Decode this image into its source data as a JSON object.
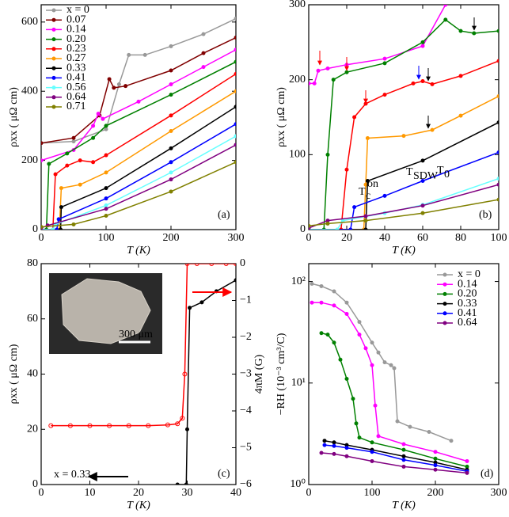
{
  "chart_data": [
    {
      "type": "line",
      "x_label": "T (K)",
      "y_label": "ρxx ( μΩ cm)",
      "xlim": [
        0,
        300
      ],
      "xticks": [
        0,
        100,
        200,
        300
      ],
      "ylim": [
        0,
        650
      ],
      "yticks": [
        0,
        200,
        400,
        600
      ],
      "legend": "upper left",
      "annotations": [
        "(a)"
      ],
      "series": [
        {
          "name": "x = 0",
          "color": "#999999",
          "x": [
            0,
            50,
            100,
            120,
            135,
            160,
            200,
            250,
            300
          ],
          "values": [
            250,
            255,
            290,
            420,
            505,
            505,
            530,
            565,
            610
          ]
        },
        {
          "name": "0.07",
          "color": "#800000",
          "x": [
            0,
            50,
            90,
            105,
            112,
            130,
            200,
            250,
            300
          ],
          "values": [
            250,
            265,
            330,
            435,
            410,
            415,
            460,
            510,
            555
          ]
        },
        {
          "name": "0.14",
          "color": "#ff00ff",
          "x": [
            0,
            50,
            80,
            88,
            95,
            150,
            200,
            250,
            300
          ],
          "values": [
            200,
            230,
            300,
            335,
            320,
            370,
            420,
            470,
            520
          ]
        },
        {
          "name": "0.20",
          "color": "#008000",
          "x": [
            0,
            8,
            12,
            40,
            80,
            100,
            200,
            300
          ],
          "values": [
            0,
            0,
            190,
            220,
            265,
            300,
            390,
            485
          ]
        },
        {
          "name": "0.23",
          "color": "#ff0000",
          "x": [
            0,
            18,
            22,
            40,
            60,
            80,
            100,
            200,
            300
          ],
          "values": [
            0,
            0,
            160,
            185,
            200,
            195,
            215,
            330,
            450
          ]
        },
        {
          "name": "0.27",
          "color": "#ff9900",
          "x": [
            0,
            28,
            31,
            60,
            100,
            200,
            300
          ],
          "values": [
            0,
            0,
            120,
            130,
            165,
            285,
            400
          ]
        },
        {
          "name": "0.33",
          "color": "#000000",
          "x": [
            0,
            30,
            31,
            100,
            200,
            300
          ],
          "values": [
            0,
            0,
            65,
            120,
            235,
            355
          ]
        },
        {
          "name": "0.41",
          "color": "#0000ff",
          "x": [
            0,
            24,
            27,
            100,
            200,
            300
          ],
          "values": [
            0,
            0,
            30,
            90,
            195,
            305
          ]
        },
        {
          "name": "0.56",
          "color": "#66ffff",
          "x": [
            0,
            18,
            22,
            100,
            200,
            300
          ],
          "values": [
            0,
            0,
            15,
            70,
            165,
            270
          ]
        },
        {
          "name": "0.64",
          "color": "#800080",
          "x": [
            0,
            10,
            100,
            200,
            300
          ],
          "values": [
            5,
            12,
            60,
            145,
            245
          ]
        },
        {
          "name": "0.71",
          "color": "#808000",
          "x": [
            0,
            50,
            100,
            200,
            300
          ],
          "values": [
            8,
            15,
            40,
            110,
            195
          ]
        }
      ]
    },
    {
      "type": "line",
      "x_label": "T (K)",
      "y_label": "ρxx ( μΩ cm)",
      "xlim": [
        0,
        100
      ],
      "xticks": [
        0,
        20,
        40,
        60,
        80,
        100
      ],
      "ylim": [
        0,
        300
      ],
      "yticks": [
        0,
        100,
        200,
        300
      ],
      "annotations": [
        "T",
        "c",
        "on",
        "T",
        "SDW",
        "T",
        "0",
        "(b)"
      ],
      "series": [
        {
          "color": "#ff00ff",
          "x": [
            0,
            3,
            5,
            10,
            20,
            40,
            60,
            72
          ],
          "values": [
            195,
            195,
            212,
            215,
            220,
            228,
            245,
            300
          ]
        },
        {
          "color": "#008000",
          "x": [
            0,
            8,
            10,
            13,
            20,
            40,
            60,
            72,
            80,
            87,
            100
          ],
          "values": [
            0,
            0,
            100,
            200,
            210,
            222,
            250,
            280,
            265,
            262,
            265
          ]
        },
        {
          "color": "#ff0000",
          "x": [
            0,
            17,
            20,
            24,
            30,
            40,
            55,
            60,
            65,
            80,
            100
          ],
          "values": [
            0,
            0,
            80,
            150,
            168,
            180,
            195,
            198,
            194,
            205,
            225
          ]
        },
        {
          "color": "#ff9900",
          "x": [
            0,
            29,
            30,
            31,
            50,
            65,
            80,
            100
          ],
          "values": [
            0,
            0,
            60,
            122,
            125,
            133,
            152,
            178
          ]
        },
        {
          "color": "#000000",
          "x": [
            0,
            30,
            31,
            60,
            100
          ],
          "values": [
            0,
            0,
            65,
            92,
            143
          ]
        },
        {
          "color": "#0000ff",
          "x": [
            0,
            22,
            24,
            40,
            60,
            100
          ],
          "values": [
            0,
            0,
            30,
            45,
            65,
            103
          ]
        },
        {
          "color": "#66ffff",
          "x": [
            0,
            15,
            18,
            40,
            60,
            100
          ],
          "values": [
            0,
            0,
            12,
            22,
            33,
            68
          ]
        },
        {
          "color": "#800080",
          "x": [
            0,
            10,
            30,
            60,
            100
          ],
          "values": [
            2,
            12,
            18,
            32,
            60
          ]
        },
        {
          "color": "#808000",
          "x": [
            0,
            10,
            30,
            60,
            100
          ],
          "values": [
            5,
            8,
            12,
            22,
            40
          ]
        }
      ]
    },
    {
      "type": "line",
      "x_label": "T (K)",
      "y_label": "ρxx ( μΩ cm)",
      "y2_label": "4πM (G)",
      "xlim": [
        0,
        40
      ],
      "xticks": [
        0,
        10,
        20,
        30,
        40
      ],
      "ylim": [
        0,
        80
      ],
      "yticks": [
        0,
        20,
        40,
        60,
        80
      ],
      "y2lim": [
        -6,
        0
      ],
      "y2ticks": [
        0,
        {
          "value": -1,
          "label": "−1"
        },
        {
          "value": -2,
          "label": "−2"
        },
        {
          "value": -3,
          "label": "−3"
        },
        {
          "value": -4,
          "label": "−4"
        },
        {
          "value": -5,
          "label": "−5"
        },
        {
          "value": -6,
          "label": "−6"
        }
      ],
      "annotations": [
        "x = 0.33",
        "(c)",
        "300 μm"
      ],
      "series": [
        {
          "color": "#ff0000",
          "axis": "y2",
          "x": [
            2,
            6,
            10,
            14,
            18,
            22,
            26,
            28,
            29,
            29.5,
            30,
            32,
            35,
            38,
            40
          ],
          "values": [
            -4.4,
            -4.4,
            -4.4,
            -4.4,
            -4.4,
            -4.4,
            -4.38,
            -4.35,
            -4.2,
            -3,
            0,
            0,
            0,
            0,
            0
          ]
        },
        {
          "color": "#000000",
          "x": [
            28,
            29.8,
            30,
            30.5,
            33,
            36,
            40
          ],
          "values": [
            0,
            0,
            20,
            64,
            66,
            70,
            74
          ]
        }
      ]
    },
    {
      "type": "line",
      "log_y": true,
      "x_label": "T (K)",
      "y_label": "−RH (10⁻³ cm³/C)",
      "xlim": [
        0,
        300
      ],
      "xticks": [
        0,
        100,
        200,
        300
      ],
      "ylim": [
        1,
        150
      ],
      "yticks": [
        {
          "value": 1,
          "label": "10⁰"
        },
        {
          "value": 10,
          "label": "10¹"
        },
        {
          "value": 100,
          "label": "10²"
        }
      ],
      "legend": "upper right",
      "annotations": [
        "(d)"
      ],
      "series": [
        {
          "name": "x = 0",
          "color": "#999999",
          "x": [
            5,
            20,
            40,
            60,
            80,
            100,
            110,
            120,
            130,
            135,
            140,
            160,
            190,
            225
          ],
          "values": [
            95,
            90,
            80,
            62,
            40,
            25,
            20,
            16,
            15,
            14,
            4.2,
            3.7,
            3.3,
            2.7
          ]
        },
        {
          "name": "0.14",
          "color": "#ff00ff",
          "x": [
            5,
            20,
            40,
            60,
            80,
            90,
            100,
            105,
            110,
            150,
            200,
            250
          ],
          "values": [
            62,
            62,
            58,
            48,
            30,
            22,
            15,
            6,
            3,
            2.5,
            2.1,
            1.7
          ]
        },
        {
          "name": "0.20",
          "color": "#008000",
          "x": [
            20,
            30,
            40,
            50,
            60,
            70,
            75,
            80,
            100,
            150,
            200,
            250
          ],
          "values": [
            31,
            30,
            25,
            17,
            11,
            7,
            4,
            2.9,
            2.6,
            2.2,
            1.8,
            1.5
          ]
        },
        {
          "name": "0.33",
          "color": "#000000",
          "x": [
            25,
            40,
            60,
            100,
            150,
            200,
            250
          ],
          "values": [
            2.7,
            2.6,
            2.45,
            2.2,
            1.9,
            1.65,
            1.4
          ]
        },
        {
          "name": "0.41",
          "color": "#0000ff",
          "x": [
            25,
            40,
            60,
            100,
            150,
            200,
            250
          ],
          "values": [
            2.45,
            2.4,
            2.3,
            2.1,
            1.75,
            1.55,
            1.35
          ]
        },
        {
          "name": "0.64",
          "color": "#800080",
          "x": [
            20,
            40,
            60,
            100,
            150,
            200,
            250
          ],
          "values": [
            2.05,
            2.0,
            1.9,
            1.7,
            1.5,
            1.4,
            1.3
          ]
        }
      ]
    }
  ]
}
